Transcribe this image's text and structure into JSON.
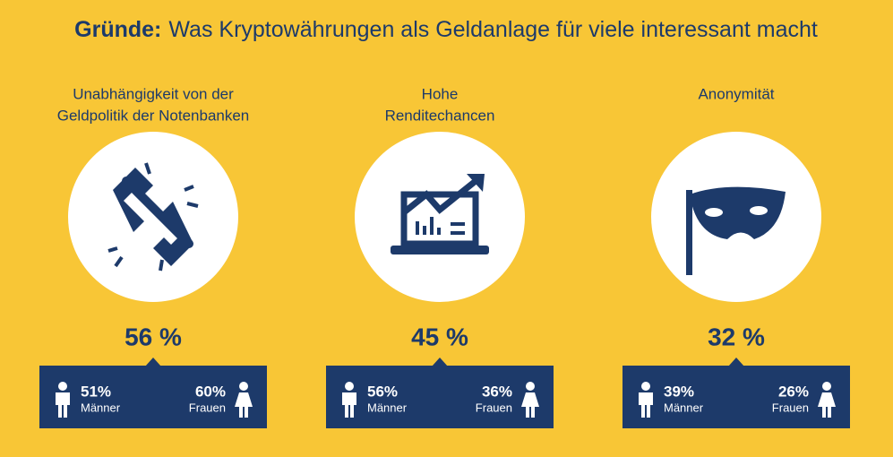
{
  "title": {
    "bold": "Gründe:",
    "rest": "Was Kryptowährungen als Geldanlage für viele interessant macht"
  },
  "items": [
    {
      "label": [
        "Unabhängigkeit von der",
        "Geldpolitik der Notenbanken"
      ],
      "total": "56 %",
      "men": {
        "value": "51%",
        "label": "Männer"
      },
      "women": {
        "value": "60%",
        "label": "Frauen"
      }
    },
    {
      "label": [
        "Hohe",
        "Renditechancen"
      ],
      "total": "45 %",
      "men": {
        "value": "56%",
        "label": "Männer"
      },
      "women": {
        "value": "36%",
        "label": "Frauen"
      }
    },
    {
      "label": [
        "Anonymität"
      ],
      "total": "32 %",
      "men": {
        "value": "39%",
        "label": "Männer"
      },
      "women": {
        "value": "26%",
        "label": "Frauen"
      }
    }
  ]
}
